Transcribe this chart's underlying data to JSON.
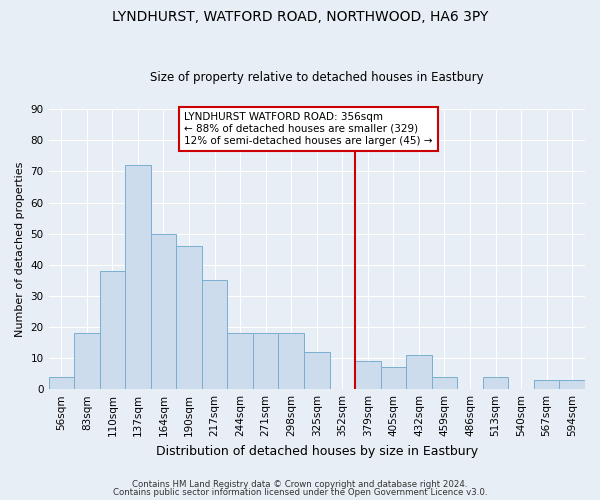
{
  "title": "LYNDHURST, WATFORD ROAD, NORTHWOOD, HA6 3PY",
  "subtitle": "Size of property relative to detached houses in Eastbury",
  "xlabel": "Distribution of detached houses by size in Eastbury",
  "ylabel": "Number of detached properties",
  "bar_labels": [
    "56sqm",
    "83sqm",
    "110sqm",
    "137sqm",
    "164sqm",
    "190sqm",
    "217sqm",
    "244sqm",
    "271sqm",
    "298sqm",
    "325sqm",
    "352sqm",
    "379sqm",
    "405sqm",
    "432sqm",
    "459sqm",
    "486sqm",
    "513sqm",
    "540sqm",
    "567sqm",
    "594sqm"
  ],
  "bar_values": [
    4,
    18,
    38,
    72,
    50,
    46,
    35,
    18,
    18,
    18,
    12,
    0,
    9,
    7,
    11,
    4,
    0,
    4,
    0,
    3,
    3
  ],
  "bar_color": "#cddcec",
  "bar_edge_color": "#7aaed0",
  "vline_x_index": 11,
  "vline_color": "#cc0000",
  "annotation_title": "LYNDHURST WATFORD ROAD: 356sqm",
  "annotation_line1": "← 88% of detached houses are smaller (329)",
  "annotation_line2": "12% of semi-detached houses are larger (45) →",
  "annotation_box_color": "#ffffff",
  "annotation_box_edge": "#cc0000",
  "ylim": [
    0,
    90
  ],
  "yticks": [
    0,
    10,
    20,
    30,
    40,
    50,
    60,
    70,
    80,
    90
  ],
  "footer1": "Contains HM Land Registry data © Crown copyright and database right 2024.",
  "footer2": "Contains public sector information licensed under the Open Government Licence v3.0.",
  "bg_color": "#e8eef5",
  "plot_bg_color": "#e8eef5",
  "grid_color": "#ffffff",
  "title_fontsize": 10,
  "subtitle_fontsize": 8.5,
  "ylabel_fontsize": 8,
  "xlabel_fontsize": 9,
  "tick_fontsize": 7.5,
  "footer_fontsize": 6.2
}
